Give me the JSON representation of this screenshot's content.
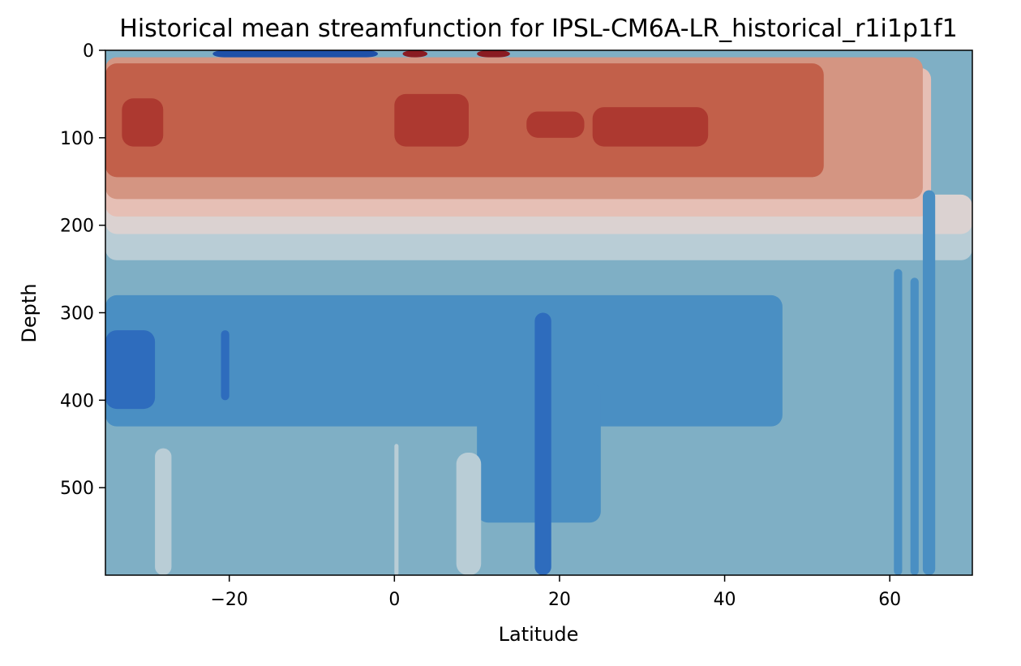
{
  "chart_data": {
    "type": "heatmap",
    "subtype": "filled-contour",
    "title": "Historical mean streamfunction for IPSL-CM6A-LR_historical_r1i1p1f1",
    "xlabel": "Latitude",
    "ylabel": "Depth",
    "xlim": [
      -35,
      70
    ],
    "ylim": [
      600,
      0
    ],
    "y_inverted": true,
    "grid": false,
    "legend": "none",
    "x_ticks": [
      -20,
      0,
      20,
      40,
      60
    ],
    "x_tick_labels": [
      "−20",
      "0",
      "20",
      "40",
      "60"
    ],
    "y_ticks": [
      0,
      100,
      200,
      300,
      400,
      500
    ],
    "y_tick_labels": [
      "0",
      "100",
      "200",
      "300",
      "400",
      "500"
    ],
    "colormap": "diverging blue-red",
    "level_colors": {
      "b5": "#1e50a8",
      "b4": "#2e6cbd",
      "b3": "#4a8fc3",
      "b2": "#7fafc5",
      "b1": "#b9cdd6",
      "w1": "#dbd2d1",
      "r1": "#e6bfb5",
      "r2": "#d49582",
      "r3": "#c2604a",
      "r4": "#ad3930",
      "r5": "#8a1c22"
    },
    "level_bands": [
      {
        "level": "b1",
        "lat": [
          -35,
          70
        ],
        "depth": [
          190,
          240
        ]
      },
      {
        "level": "w1",
        "lat": [
          -35,
          70
        ],
        "depth": [
          165,
          210
        ]
      },
      {
        "level": "r1",
        "lat": [
          -35,
          65
        ],
        "depth": [
          20,
          190
        ]
      },
      {
        "level": "r2",
        "lat": [
          -35,
          64
        ],
        "depth": [
          8,
          170
        ]
      },
      {
        "level": "r3",
        "lat": [
          -35,
          52
        ],
        "depth": [
          15,
          145
        ]
      },
      {
        "level": "b3",
        "lat": [
          -35,
          47
        ],
        "depth": [
          280,
          430
        ]
      },
      {
        "level": "b3",
        "lat": [
          10,
          25
        ],
        "depth": [
          380,
          540
        ]
      }
    ],
    "features": [
      {
        "level": "r4",
        "lat": [
          -33,
          -28
        ],
        "depth": [
          55,
          110
        ]
      },
      {
        "level": "r4",
        "lat": [
          0,
          9
        ],
        "depth": [
          50,
          110
        ]
      },
      {
        "level": "r4",
        "lat": [
          16,
          23
        ],
        "depth": [
          70,
          100
        ]
      },
      {
        "level": "r4",
        "lat": [
          24,
          38
        ],
        "depth": [
          65,
          110
        ]
      },
      {
        "level": "r5",
        "lat": [
          1,
          4
        ],
        "depth": [
          0,
          8
        ]
      },
      {
        "level": "r5",
        "lat": [
          10,
          14
        ],
        "depth": [
          0,
          8
        ]
      },
      {
        "level": "b5",
        "lat": [
          -22,
          -2
        ],
        "depth": [
          0,
          8
        ]
      },
      {
        "level": "b4",
        "lat": [
          -35,
          -29
        ],
        "depth": [
          320,
          410
        ]
      },
      {
        "level": "b4",
        "lat": [
          -21,
          -20
        ],
        "depth": [
          320,
          400
        ]
      },
      {
        "level": "b4",
        "lat": [
          17,
          19
        ],
        "depth": [
          300,
          600
        ]
      },
      {
        "level": "b3",
        "lat": [
          60.5,
          61.5
        ],
        "depth": [
          250,
          600
        ]
      },
      {
        "level": "b3",
        "lat": [
          62.5,
          63.5
        ],
        "depth": [
          260,
          600
        ]
      },
      {
        "level": "b3",
        "lat": [
          64,
          65.5
        ],
        "depth": [
          160,
          600
        ]
      },
      {
        "level": "b1",
        "lat": [
          -29,
          -27
        ],
        "depth": [
          455,
          600
        ]
      },
      {
        "level": "b1",
        "lat": [
          7.5,
          10.5
        ],
        "depth": [
          460,
          600
        ]
      },
      {
        "level": "b1",
        "lat": [
          0,
          0.5
        ],
        "depth": [
          450,
          600
        ]
      }
    ]
  }
}
